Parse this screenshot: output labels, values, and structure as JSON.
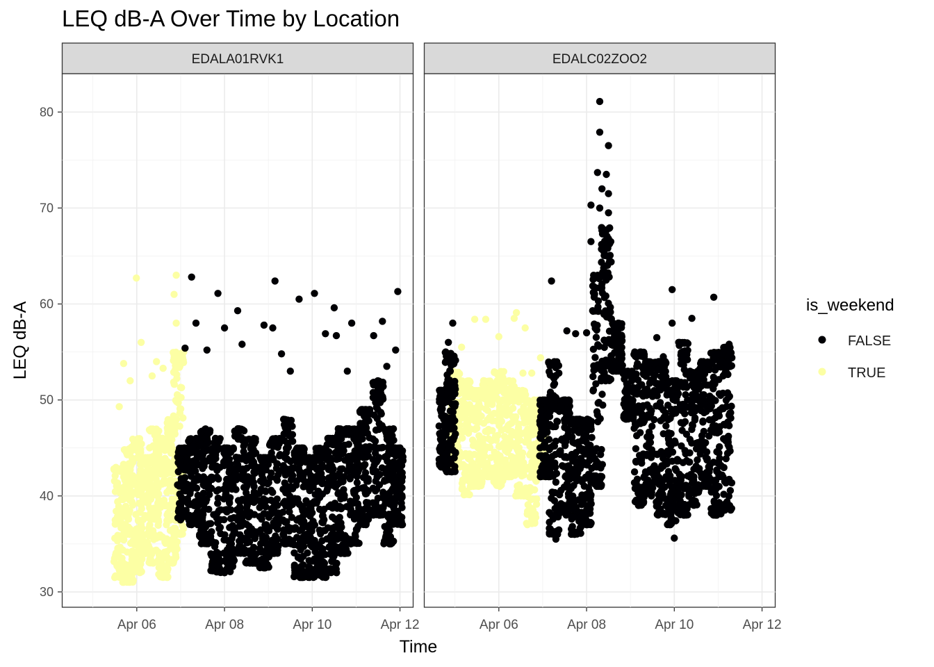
{
  "chart_data": {
    "type": "scatter",
    "title": "LEQ dB-A Over Time by Location",
    "xlabel": "Time",
    "ylabel": "LEQ dB-A",
    "x_ticks": [
      "Apr 06",
      "Apr 08",
      "Apr 10",
      "Apr 12"
    ],
    "x_tick_days": [
      6,
      8,
      10,
      12
    ],
    "x_range_days": [
      4.3,
      12.3
    ],
    "y_ticks": [
      30,
      40,
      50,
      60,
      70,
      80
    ],
    "ylim": [
      28.4,
      84.0
    ],
    "grid": true,
    "legend": {
      "title": "is_weekend",
      "position": "right",
      "entries": [
        {
          "label": "FALSE",
          "color": "#000004"
        },
        {
          "label": "TRUE",
          "color": "#FCFFA4"
        }
      ]
    },
    "facets": [
      {
        "name": "EDALA01RVK1",
        "weekend_time_range": [
          "Apr 05 14:00",
          "Apr 06 23:00"
        ],
        "weekday_time_range": [
          "Apr 07 00:00",
          "Apr 11 23:00"
        ],
        "series": [
          {
            "name": "TRUE",
            "bands": [
              {
                "day": 5.6,
                "low": 31.5,
                "high": 43
              },
              {
                "day": 5.8,
                "low": 31,
                "high": 45
              },
              {
                "day": 6.0,
                "low": 32,
                "high": 46
              },
              {
                "day": 6.2,
                "low": 34,
                "high": 44
              },
              {
                "day": 6.4,
                "low": 33,
                "high": 47
              },
              {
                "day": 6.6,
                "low": 31.5,
                "high": 46
              },
              {
                "day": 6.8,
                "low": 33,
                "high": 48
              },
              {
                "day": 6.95,
                "low": 36,
                "high": 55
              }
            ],
            "points": [
              {
                "day": 5.99,
                "value": 62.7
              },
              {
                "day": 6.9,
                "value": 63.0
              },
              {
                "day": 5.7,
                "value": 53.8
              },
              {
                "day": 6.1,
                "value": 56.0
              },
              {
                "day": 6.35,
                "value": 52.5
              },
              {
                "day": 6.6,
                "value": 53.3
              },
              {
                "day": 6.9,
                "value": 58.0
              },
              {
                "day": 5.6,
                "value": 49.3
              },
              {
                "day": 6.85,
                "value": 61.0
              },
              {
                "day": 6.45,
                "value": 54.0
              },
              {
                "day": 5.85,
                "value": 52.0
              }
            ]
          },
          {
            "name": "FALSE",
            "bands": [
              {
                "day": 7.05,
                "low": 37.5,
                "high": 45
              },
              {
                "day": 7.3,
                "low": 37,
                "high": 46
              },
              {
                "day": 7.55,
                "low": 35,
                "high": 47
              },
              {
                "day": 7.8,
                "low": 32,
                "high": 46
              },
              {
                "day": 8.1,
                "low": 32,
                "high": 45
              },
              {
                "day": 8.35,
                "low": 34,
                "high": 47
              },
              {
                "day": 8.6,
                "low": 33,
                "high": 46
              },
              {
                "day": 8.9,
                "low": 32.5,
                "high": 44
              },
              {
                "day": 9.15,
                "low": 34,
                "high": 46
              },
              {
                "day": 9.45,
                "low": 35,
                "high": 48
              },
              {
                "day": 9.7,
                "low": 31.5,
                "high": 45
              },
              {
                "day": 9.95,
                "low": 31.5,
                "high": 44
              },
              {
                "day": 10.2,
                "low": 31.5,
                "high": 45
              },
              {
                "day": 10.45,
                "low": 32,
                "high": 46
              },
              {
                "day": 10.7,
                "low": 34,
                "high": 47
              },
              {
                "day": 10.95,
                "low": 35,
                "high": 47
              },
              {
                "day": 11.2,
                "low": 37,
                "high": 49
              },
              {
                "day": 11.5,
                "low": 38,
                "high": 52
              },
              {
                "day": 11.75,
                "low": 35,
                "high": 47
              },
              {
                "day": 11.95,
                "low": 37,
                "high": 45
              }
            ],
            "points": [
              {
                "day": 7.25,
                "value": 62.8
              },
              {
                "day": 7.85,
                "value": 61.1
              },
              {
                "day": 8.3,
                "value": 59.3
              },
              {
                "day": 9.15,
                "value": 62.4
              },
              {
                "day": 9.7,
                "value": 60.5
              },
              {
                "day": 10.05,
                "value": 61.1
              },
              {
                "day": 10.5,
                "value": 59.6
              },
              {
                "day": 10.9,
                "value": 58.0
              },
              {
                "day": 11.6,
                "value": 58.2
              },
              {
                "day": 11.95,
                "value": 61.3
              },
              {
                "day": 11.9,
                "value": 55.2
              },
              {
                "day": 7.35,
                "value": 58.0
              },
              {
                "day": 8.0,
                "value": 57.5
              },
              {
                "day": 8.9,
                "value": 57.8
              },
              {
                "day": 9.1,
                "value": 57.5
              },
              {
                "day": 10.3,
                "value": 56.9
              },
              {
                "day": 10.55,
                "value": 56.7
              },
              {
                "day": 11.4,
                "value": 56.7
              },
              {
                "day": 7.1,
                "value": 55.4
              },
              {
                "day": 7.6,
                "value": 55.2
              },
              {
                "day": 8.4,
                "value": 55.8
              },
              {
                "day": 9.3,
                "value": 54.8
              },
              {
                "day": 9.5,
                "value": 53.0
              },
              {
                "day": 10.8,
                "value": 53.0
              },
              {
                "day": 11.7,
                "value": 53.5
              }
            ]
          }
        ]
      },
      {
        "name": "EDALC02ZOO2",
        "weekend_time_range": [
          "Apr 05 00:00",
          "Apr 06 23:00"
        ],
        "weekday_time_range": [
          "Apr 04 18:00",
          "Apr 11 06:00"
        ],
        "series": [
          {
            "name": "TRUE",
            "bands": [
              {
                "day": 5.0,
                "low": 43,
                "high": 53
              },
              {
                "day": 5.25,
                "low": 40,
                "high": 52
              },
              {
                "day": 5.5,
                "low": 41,
                "high": 51
              },
              {
                "day": 5.75,
                "low": 42,
                "high": 52
              },
              {
                "day": 6.0,
                "low": 41,
                "high": 53
              },
              {
                "day": 6.25,
                "low": 42,
                "high": 52
              },
              {
                "day": 6.5,
                "low": 40,
                "high": 51
              },
              {
                "day": 6.75,
                "low": 37,
                "high": 50
              },
              {
                "day": 6.95,
                "low": 42,
                "high": 50
              }
            ],
            "points": [
              {
                "day": 5.45,
                "value": 58.4
              },
              {
                "day": 5.7,
                "value": 58.4
              },
              {
                "day": 6.4,
                "value": 59.1
              },
              {
                "day": 6.35,
                "value": 58.5
              },
              {
                "day": 5.15,
                "value": 55.5
              },
              {
                "day": 6.0,
                "value": 56.6
              },
              {
                "day": 6.6,
                "value": 57.5
              },
              {
                "day": 6.95,
                "value": 54.4
              },
              {
                "day": 6.55,
                "value": 52.8
              },
              {
                "day": 6.75,
                "value": 52.8
              }
            ]
          },
          {
            "name": "FALSE",
            "bands": [
              {
                "day": 4.75,
                "low": 43,
                "high": 51
              },
              {
                "day": 4.9,
                "low": 42.5,
                "high": 55
              },
              {
                "day": 7.05,
                "low": 42,
                "high": 50
              },
              {
                "day": 7.25,
                "low": 36,
                "high": 54
              },
              {
                "day": 7.5,
                "low": 38,
                "high": 50
              },
              {
                "day": 7.75,
                "low": 36,
                "high": 48
              },
              {
                "day": 8.0,
                "low": 37,
                "high": 48
              },
              {
                "day": 8.25,
                "low": 41,
                "high": 63
              },
              {
                "day": 8.45,
                "low": 52,
                "high": 68
              },
              {
                "day": 8.7,
                "low": 53,
                "high": 58
              },
              {
                "day": 8.95,
                "low": 48,
                "high": 53
              },
              {
                "day": 9.2,
                "low": 39,
                "high": 55
              },
              {
                "day": 9.45,
                "low": 40,
                "high": 54
              },
              {
                "day": 9.7,
                "low": 38,
                "high": 54
              },
              {
                "day": 9.95,
                "low": 37,
                "high": 52
              },
              {
                "day": 10.2,
                "low": 38,
                "high": 56
              },
              {
                "day": 10.45,
                "low": 39,
                "high": 53
              },
              {
                "day": 10.7,
                "low": 41,
                "high": 54
              },
              {
                "day": 10.95,
                "low": 38,
                "high": 55
              },
              {
                "day": 11.2,
                "low": 38.5,
                "high": 55.5
              }
            ],
            "points": [
              {
                "day": 8.3,
                "value": 81.1
              },
              {
                "day": 8.3,
                "value": 77.9
              },
              {
                "day": 8.5,
                "value": 76.5
              },
              {
                "day": 8.25,
                "value": 73.7
              },
              {
                "day": 8.45,
                "value": 73.5
              },
              {
                "day": 8.35,
                "value": 72.0
              },
              {
                "day": 8.5,
                "value": 71.5
              },
              {
                "day": 8.1,
                "value": 70.3
              },
              {
                "day": 8.3,
                "value": 70.0
              },
              {
                "day": 8.5,
                "value": 69.5
              },
              {
                "day": 8.1,
                "value": 66.5
              },
              {
                "day": 8.5,
                "value": 66.8
              },
              {
                "day": 7.2,
                "value": 62.4
              },
              {
                "day": 9.95,
                "value": 61.5
              },
              {
                "day": 10.9,
                "value": 60.7
              },
              {
                "day": 10.4,
                "value": 58.5
              },
              {
                "day": 4.95,
                "value": 58.0
              },
              {
                "day": 9.95,
                "value": 58.0
              },
              {
                "day": 7.55,
                "value": 57.2
              },
              {
                "day": 7.75,
                "value": 56.9
              },
              {
                "day": 8.0,
                "value": 57.0
              },
              {
                "day": 9.6,
                "value": 56.5
              },
              {
                "day": 10.1,
                "value": 56.0
              },
              {
                "day": 4.85,
                "value": 56.0
              },
              {
                "day": 9.75,
                "value": 54.5
              },
              {
                "day": 11.25,
                "value": 55.8
              },
              {
                "day": 10.0,
                "value": 35.6
              },
              {
                "day": 7.3,
                "value": 35.5
              }
            ]
          }
        ]
      }
    ]
  }
}
